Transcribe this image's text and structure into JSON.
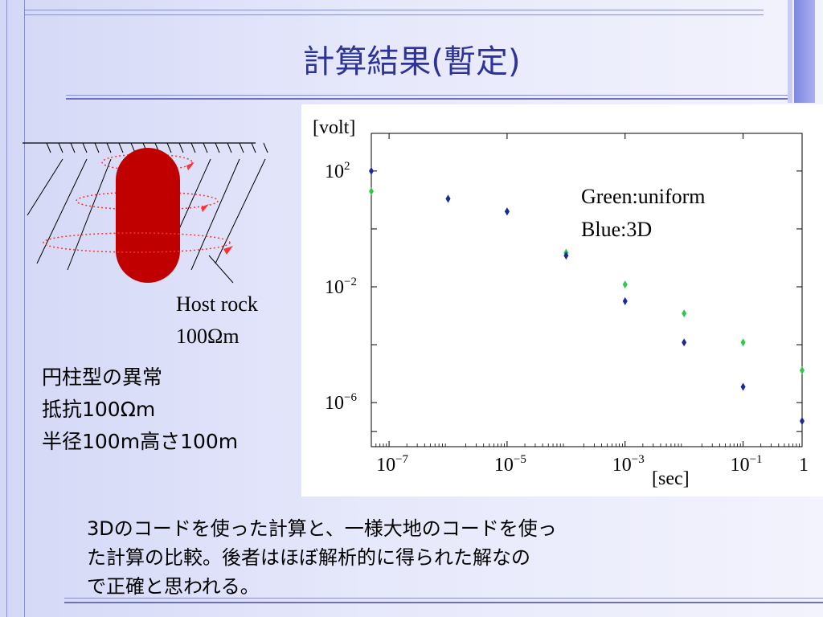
{
  "slide": {
    "title": "計算結果(暫定)",
    "host_rock_label": "Host rock",
    "host_rock_resistivity": "100Ωm",
    "anomaly": [
      "円柱型の異常",
      "抵抗100Ωm",
      "半径100m高さ100m"
    ],
    "bottom_text": [
      "3Dのコードを使った計算と、一様大地のコードを使っ",
      "た計算の比較。後者はほぼ解析的に得られた解なの",
      "で正確と思われる。"
    ]
  },
  "colors": {
    "title": "#2e3497",
    "cylinder": "#c00000",
    "loop": "#ff3030",
    "uniform": "#2ec84a",
    "threeD": "#1a2a9c"
  },
  "chart_data": {
    "type": "scatter",
    "title": "",
    "xlabel": "[sec]",
    "ylabel": "[volt]",
    "xscale": "log",
    "yscale": "log",
    "xlim": [
      5e-08,
      1
    ],
    "ylim": [
      3e-08,
      2000
    ],
    "x_ticks": [
      {
        "value": 1e-07,
        "base": "10",
        "exp": "−7"
      },
      {
        "value": 1e-05,
        "base": "10",
        "exp": "−5"
      },
      {
        "value": 0.001,
        "base": "10",
        "exp": "−3"
      },
      {
        "value": 0.1,
        "base": "10",
        "exp": "−1"
      },
      {
        "value": 1,
        "base": "1",
        "exp": ""
      }
    ],
    "y_ticks": [
      {
        "value": 100,
        "base": "10",
        "exp": "2"
      },
      {
        "value": 0.01,
        "base": "10",
        "exp": "−2"
      },
      {
        "value": 1e-06,
        "base": "10",
        "exp": "−6"
      }
    ],
    "legend": [
      "Green:uniform",
      "Blue:3D"
    ],
    "series": [
      {
        "color": "#2ec84a",
        "x": [
          5e-08,
          1e-06,
          1e-05,
          0.0001,
          0.001,
          0.01,
          0.1,
          1
        ],
        "y": [
          20,
          11,
          4,
          0.15,
          0.012,
          0.0012,
          0.00012,
          1.3e-05
        ]
      },
      {
        "color": "#1a2a9c",
        "x": [
          5e-08,
          1e-06,
          1e-05,
          0.0001,
          0.001,
          0.01,
          0.1,
          1
        ],
        "y": [
          100,
          11,
          4,
          0.12,
          0.0032,
          0.00012,
          3.5e-06,
          2.3e-07
        ]
      }
    ]
  }
}
